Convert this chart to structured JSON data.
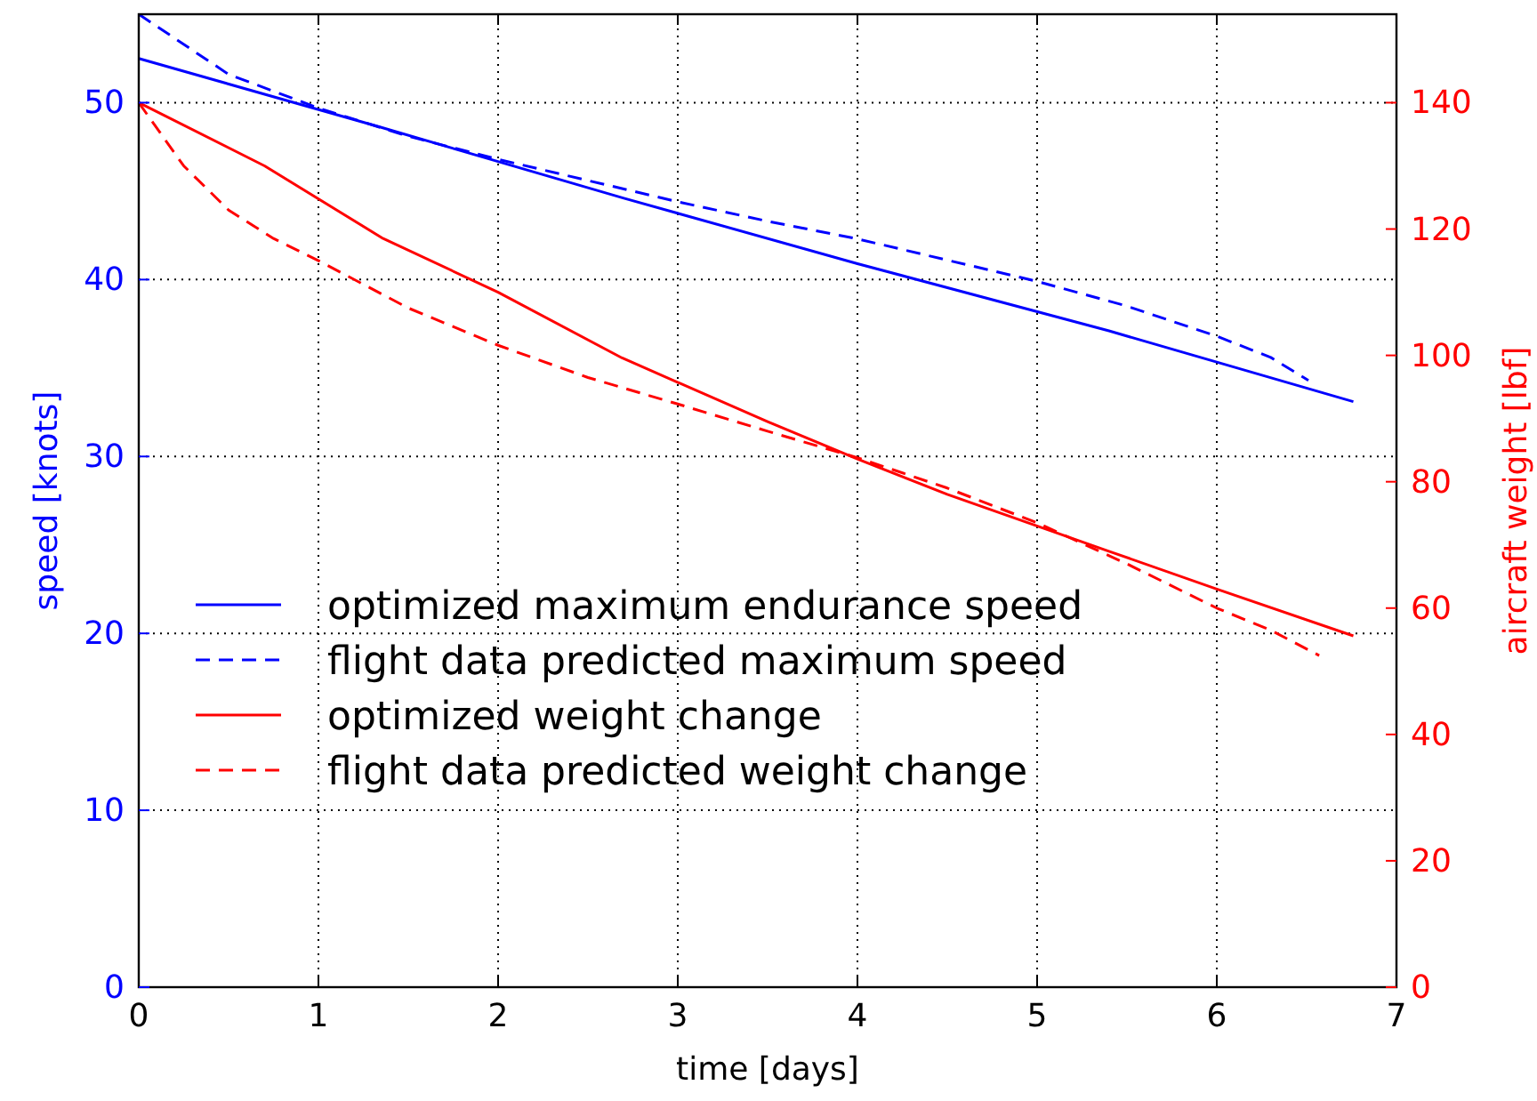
{
  "chart_data": {
    "type": "line",
    "xlabel": "time [days]",
    "ylabel": "speed [knots]",
    "y2label": "aircraft weight [lbf]",
    "xlim": [
      0,
      7
    ],
    "xticks": [
      0,
      1,
      2,
      3,
      4,
      5,
      6,
      7
    ],
    "ylim": [
      0,
      55
    ],
    "yticks": [
      0,
      10,
      20,
      30,
      40,
      50
    ],
    "y2lim": [
      0,
      154
    ],
    "y2ticks": [
      0,
      20,
      40,
      60,
      80,
      100,
      120,
      140
    ],
    "grid": true,
    "legend": "bottom",
    "series": [
      {
        "name": "optimized maximum endurance speed",
        "color": "#0000ff",
        "line_style": "solid",
        "x": [
          0,
          1.35,
          2.7,
          4,
          5.4,
          6.76
        ],
        "values": [
          52.5,
          48.6,
          44.6,
          40.9,
          37.1,
          33.1
        ]
      },
      {
        "name": "flight data predicted maximum speed",
        "color": "#0000ff",
        "line_style": "dashed",
        "x": [
          0,
          0.5,
          1,
          1.5,
          2,
          2.5,
          3,
          3.5,
          4,
          4.5,
          5,
          5.5,
          6,
          6.3,
          6.51
        ],
        "values": [
          55,
          51.6,
          49.7,
          48.1,
          46.8,
          45.6,
          44.4,
          43.3,
          42.3,
          41.1,
          39.9,
          38.5,
          36.8,
          35.6,
          34.3
        ]
      },
      {
        "name": "optimized weight change",
        "color": "#ff0000",
        "line_style": "solid",
        "axis": "y2",
        "x": [
          0,
          0.7,
          1.36,
          2,
          2.69,
          3.5,
          4,
          4.5,
          5.41,
          6,
          6.76
        ],
        "values": [
          140,
          130,
          118.5,
          110,
          99.6,
          89.5,
          83.6,
          78,
          68.9,
          63,
          55.6
        ]
      },
      {
        "name": "flight data predicted weight change",
        "color": "#ff0000",
        "line_style": "dashed",
        "axis": "y2",
        "x": [
          0,
          0.25,
          0.5,
          0.75,
          1,
          1.5,
          2,
          2.5,
          3,
          3.5,
          4,
          4.5,
          5,
          5.5,
          6,
          6.3,
          6.57
        ],
        "values": [
          140,
          130,
          123,
          118.5,
          115,
          107.5,
          101.6,
          96.5,
          92.3,
          88,
          83.8,
          79,
          73.5,
          67,
          60,
          56.5,
          52.5
        ]
      }
    ]
  }
}
